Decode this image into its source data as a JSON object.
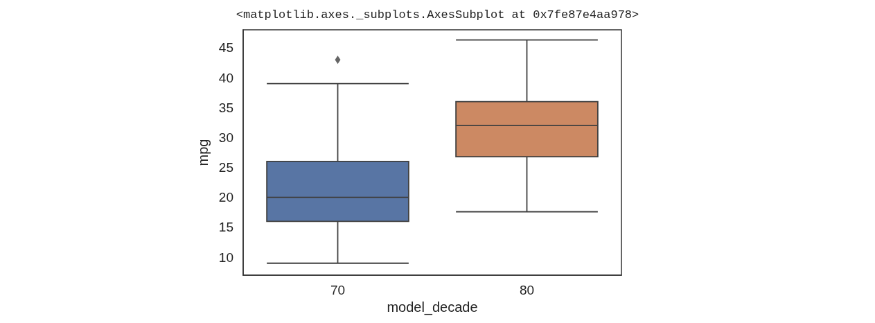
{
  "chart_data": {
    "type": "box",
    "title": "<matplotlib.axes._subplots.AxesSubplot at 0x7fe87e4aa978>",
    "xlabel": "model_decade",
    "ylabel": "mpg",
    "categories": [
      "70",
      "80"
    ],
    "colors": [
      "#5875a4",
      "#cc8963"
    ],
    "boxes": [
      {
        "low": 9,
        "q1": 16,
        "median": 20,
        "q3": 26,
        "high": 39,
        "outliers": [
          43
        ]
      },
      {
        "low": 17.6,
        "q1": 26.8,
        "median": 32,
        "q3": 36,
        "high": 46.3
      }
    ],
    "ylim": [
      7,
      48
    ],
    "yticks": [
      10,
      15,
      20,
      25,
      30,
      35,
      40,
      45
    ],
    "grid": false
  }
}
